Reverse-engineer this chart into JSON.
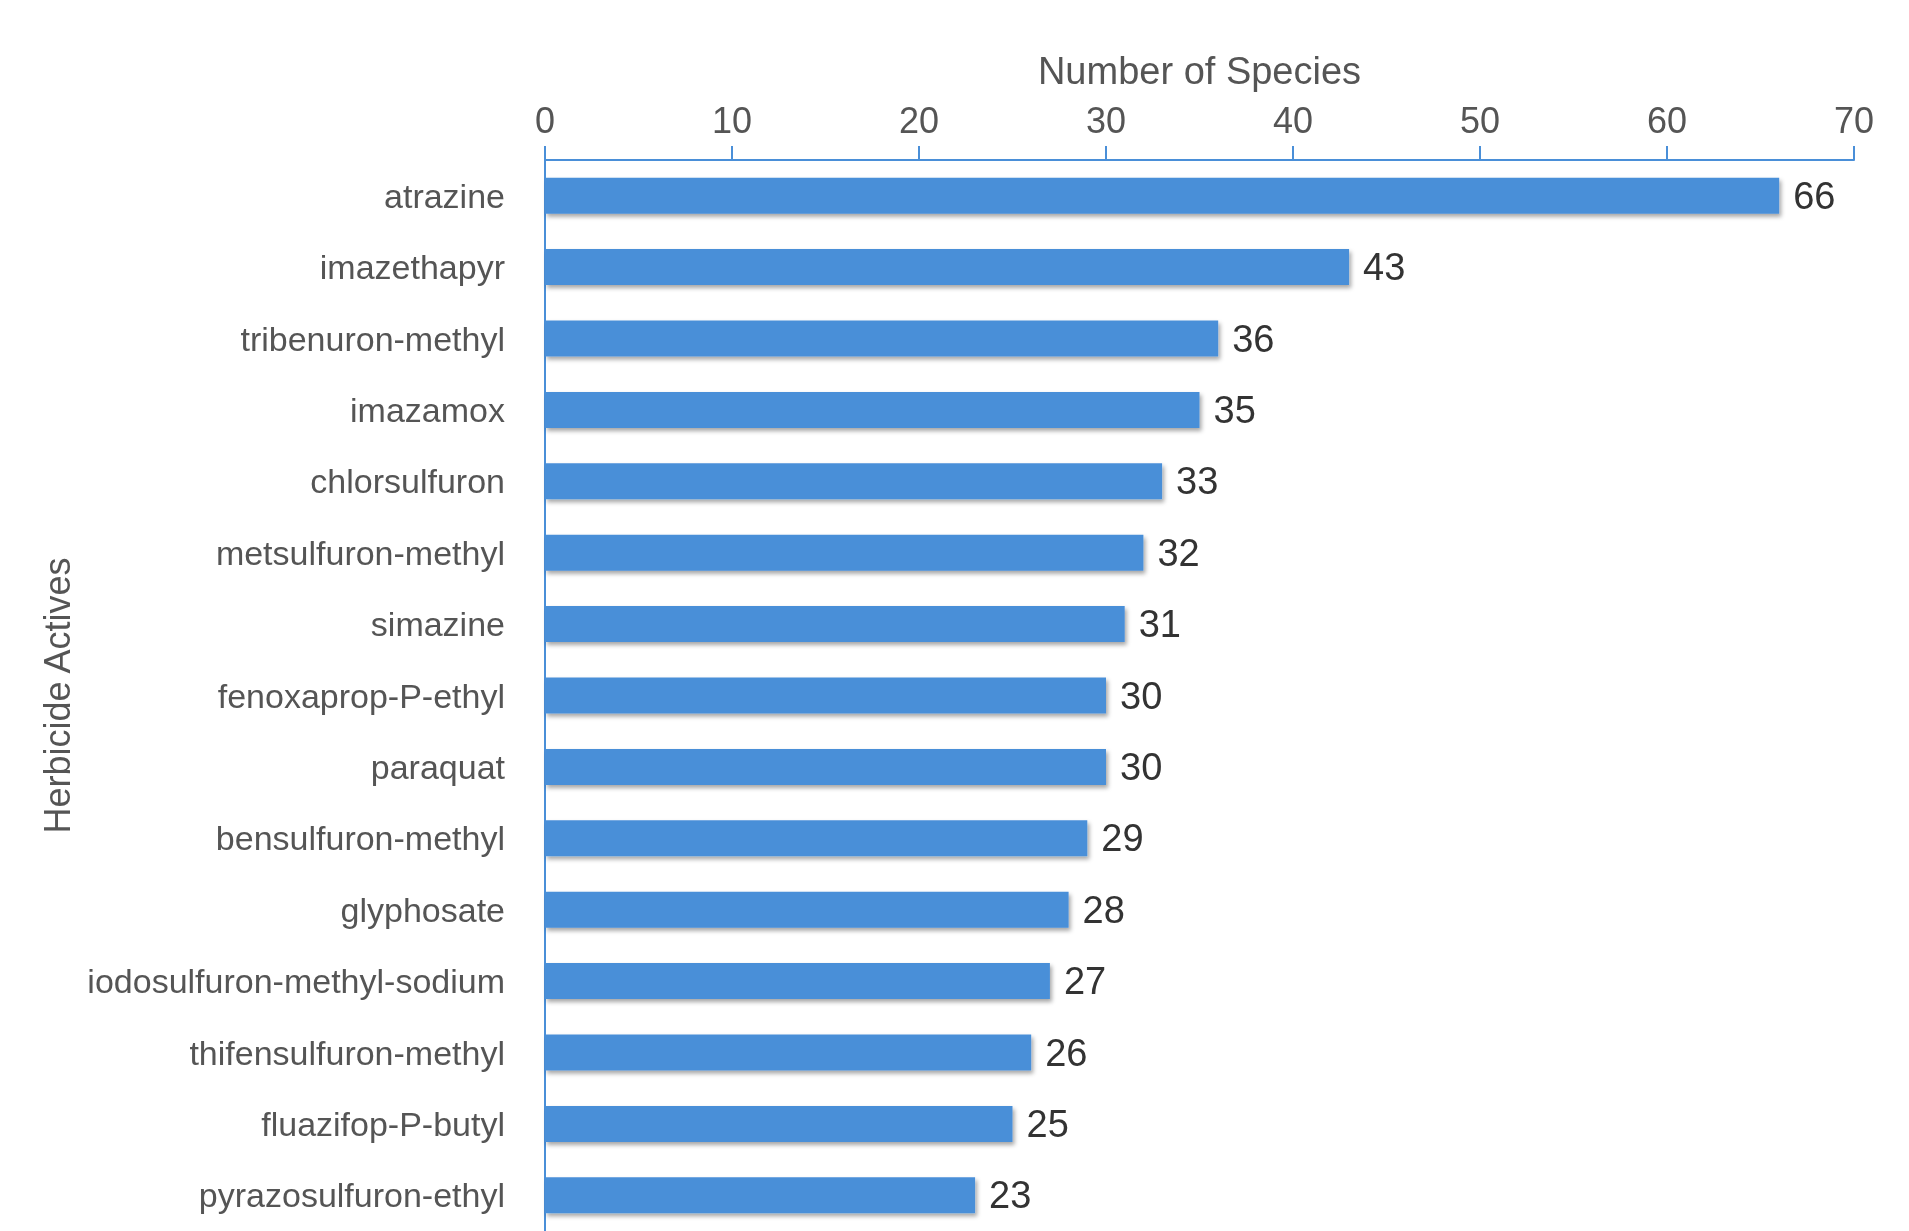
{
  "chart_data": {
    "type": "bar",
    "orientation": "horizontal",
    "xlabel": "Number of Species",
    "ylabel": "Herbicide Actives",
    "categories": [
      "atrazine",
      "imazethapyr",
      "tribenuron-methyl",
      "imazamox",
      "chlorsulfuron",
      "metsulfuron-methyl",
      "simazine",
      "fenoxaprop-P-ethyl",
      "paraquat",
      "bensulfuron-methyl",
      "glyphosate",
      "iodosulfuron-methyl-sodium",
      "thifensulfuron-methyl",
      "fluazifop-P-butyl",
      "pyrazosulfuron-ethyl"
    ],
    "values": [
      66,
      43,
      36,
      35,
      33,
      32,
      31,
      30,
      30,
      29,
      28,
      27,
      26,
      25,
      23
    ],
    "color": "#4a8fd8",
    "xlim": [
      0,
      70
    ],
    "xticks": [
      0,
      10,
      20,
      30,
      40,
      50,
      60,
      70
    ],
    "data_labels": true,
    "grid": false
  }
}
